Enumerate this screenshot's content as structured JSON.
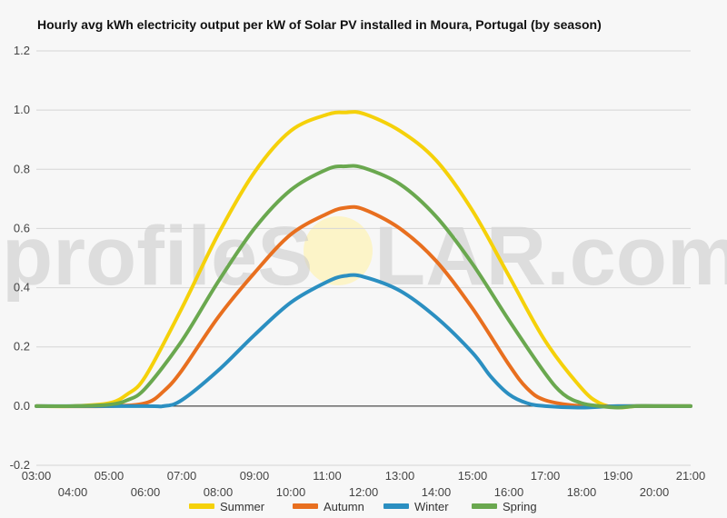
{
  "title": "Hourly avg kWh electricity output per kW of Solar PV installed in Moura, Portugal (by season)",
  "watermark": {
    "left": "profileS",
    "right": "LAR.com"
  },
  "chart_data": {
    "type": "line",
    "title": "Hourly avg kWh electricity output per kW of Solar PV installed in Moura, Portugal (by season)",
    "xlabel": "",
    "ylabel": "",
    "x_ticks": [
      "03:00",
      "04:00",
      "05:00",
      "06:00",
      "07:00",
      "08:00",
      "09:00",
      "10:00",
      "11:00",
      "12:00",
      "13:00",
      "14:00",
      "15:00",
      "16:00",
      "17:00",
      "18:00",
      "19:00",
      "20:00",
      "21:00"
    ],
    "y_ticks": [
      "1.2",
      "1.0",
      "0.8",
      "0.6",
      "0.4",
      "0.2",
      "0.0",
      "-0.2"
    ],
    "ylim": [
      -0.2,
      1.2
    ],
    "xlim": [
      "03:00",
      "21:00"
    ],
    "grid": true,
    "legend_position": "bottom",
    "series": [
      {
        "name": "Summer",
        "color": "#f5d10a",
        "points": [
          [
            "03:00",
            0
          ],
          [
            "04:00",
            0
          ],
          [
            "05:00",
            0.01
          ],
          [
            "05:30",
            0.04
          ],
          [
            "06:00",
            0.1
          ],
          [
            "07:00",
            0.33
          ],
          [
            "08:00",
            0.58
          ],
          [
            "09:00",
            0.79
          ],
          [
            "10:00",
            0.93
          ],
          [
            "11:00",
            0.985
          ],
          [
            "11:30",
            0.992
          ],
          [
            "12:00",
            0.988
          ],
          [
            "13:00",
            0.93
          ],
          [
            "14:00",
            0.83
          ],
          [
            "15:00",
            0.66
          ],
          [
            "16:00",
            0.44
          ],
          [
            "17:00",
            0.22
          ],
          [
            "18:00",
            0.06
          ],
          [
            "18:30",
            0.01
          ],
          [
            "19:00",
            -0.005
          ],
          [
            "19:30",
            0
          ],
          [
            "20:00",
            0
          ],
          [
            "21:00",
            0
          ]
        ]
      },
      {
        "name": "Autumn",
        "color": "#e86f1f",
        "points": [
          [
            "03:00",
            0
          ],
          [
            "05:00",
            0
          ],
          [
            "06:00",
            0.01
          ],
          [
            "06:30",
            0.05
          ],
          [
            "07:00",
            0.12
          ],
          [
            "08:00",
            0.3
          ],
          [
            "09:00",
            0.45
          ],
          [
            "10:00",
            0.58
          ],
          [
            "11:00",
            0.65
          ],
          [
            "11:30",
            0.67
          ],
          [
            "12:00",
            0.665
          ],
          [
            "13:00",
            0.6
          ],
          [
            "14:00",
            0.49
          ],
          [
            "15:00",
            0.33
          ],
          [
            "16:00",
            0.14
          ],
          [
            "16:30",
            0.06
          ],
          [
            "17:00",
            0.02
          ],
          [
            "18:00",
            0
          ],
          [
            "19:00",
            0
          ],
          [
            "21:00",
            0
          ]
        ]
      },
      {
        "name": "Winter",
        "color": "#2b8fc1",
        "points": [
          [
            "03:00",
            0
          ],
          [
            "06:00",
            0
          ],
          [
            "06:30",
            0
          ],
          [
            "07:00",
            0.02
          ],
          [
            "08:00",
            0.12
          ],
          [
            "09:00",
            0.24
          ],
          [
            "10:00",
            0.35
          ],
          [
            "11:00",
            0.42
          ],
          [
            "11:30",
            0.44
          ],
          [
            "12:00",
            0.437
          ],
          [
            "13:00",
            0.39
          ],
          [
            "14:00",
            0.3
          ],
          [
            "15:00",
            0.18
          ],
          [
            "15:30",
            0.1
          ],
          [
            "16:00",
            0.04
          ],
          [
            "16:30",
            0.01
          ],
          [
            "17:00",
            0
          ],
          [
            "18:00",
            -0.005
          ],
          [
            "19:00",
            0
          ],
          [
            "21:00",
            0
          ]
        ]
      },
      {
        "name": "Spring",
        "color": "#6aa84f",
        "points": [
          [
            "03:00",
            0
          ],
          [
            "04:00",
            0
          ],
          [
            "05:00",
            0.005
          ],
          [
            "05:30",
            0.02
          ],
          [
            "06:00",
            0.06
          ],
          [
            "07:00",
            0.22
          ],
          [
            "08:00",
            0.42
          ],
          [
            "09:00",
            0.6
          ],
          [
            "10:00",
            0.73
          ],
          [
            "11:00",
            0.8
          ],
          [
            "11:30",
            0.81
          ],
          [
            "12:00",
            0.805
          ],
          [
            "13:00",
            0.75
          ],
          [
            "14:00",
            0.64
          ],
          [
            "15:00",
            0.48
          ],
          [
            "16:00",
            0.29
          ],
          [
            "17:00",
            0.11
          ],
          [
            "17:30",
            0.04
          ],
          [
            "18:00",
            0.01
          ],
          [
            "18:30",
            0
          ],
          [
            "19:00",
            -0.005
          ],
          [
            "19:30",
            0
          ],
          [
            "20:00",
            0
          ],
          [
            "21:00",
            0
          ]
        ]
      }
    ]
  }
}
